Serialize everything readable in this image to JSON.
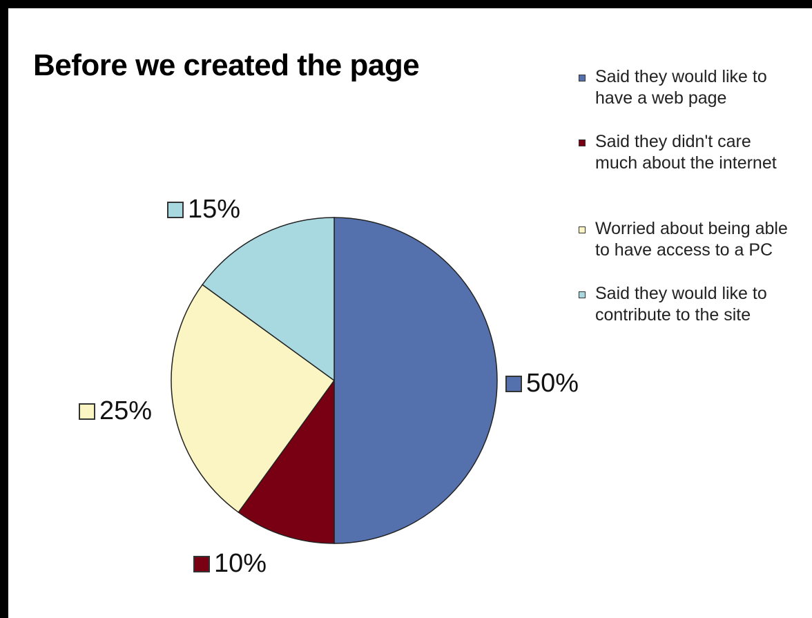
{
  "chart_data": {
    "type": "pie",
    "title": "Before we created the page",
    "slices": [
      {
        "label": "Said they would like to\nhave a web page",
        "value": 50,
        "value_label": "50%",
        "color": "#5470AD"
      },
      {
        "label": "Said they didn't care\nmuch about the internet",
        "value": 10,
        "value_label": "10%",
        "color": "#780012"
      },
      {
        "label": "Worried about being able\nto have access to a PC",
        "value": 25,
        "value_label": "25%",
        "color": "#FAF5C3"
      },
      {
        "label": "Said they would like to\ncontribute to the site",
        "value": 15,
        "value_label": "15%",
        "color": "#A9D9E0"
      }
    ],
    "legend_position": "right"
  }
}
